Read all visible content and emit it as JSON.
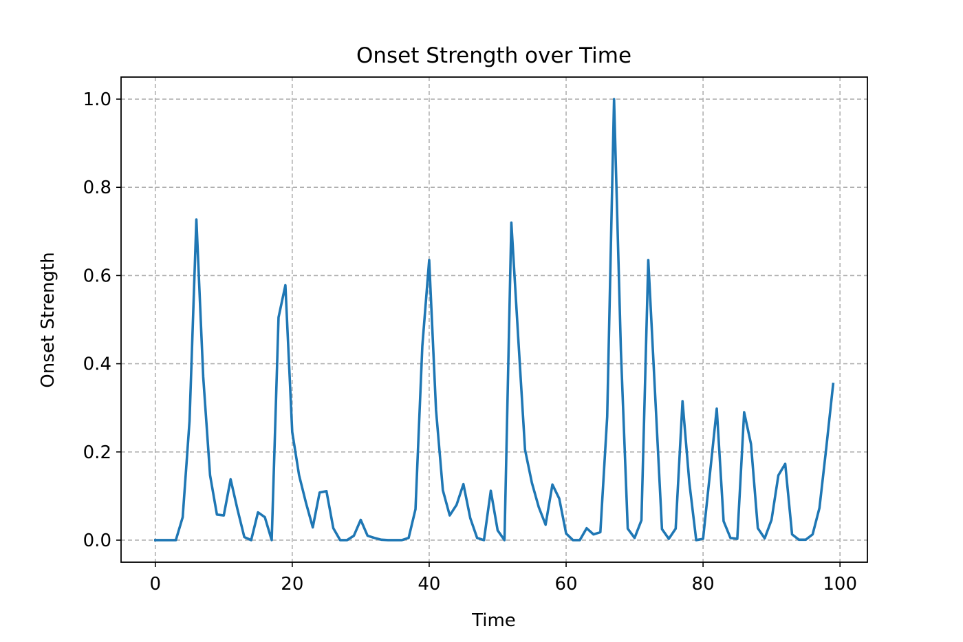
{
  "chart_data": {
    "type": "line",
    "title": "Onset Strength over Time",
    "xlabel": "Time",
    "ylabel": "Onset Strength",
    "xlim": [
      -5,
      104
    ],
    "ylim": [
      -0.05,
      1.05
    ],
    "xticks": [
      0,
      20,
      40,
      60,
      80,
      100
    ],
    "xtick_labels": [
      "0",
      "20",
      "40",
      "60",
      "80",
      "100"
    ],
    "yticks": [
      0.0,
      0.2,
      0.4,
      0.6,
      0.8,
      1.0
    ],
    "ytick_labels": [
      "0.0",
      "0.2",
      "0.4",
      "0.6",
      "0.8",
      "1.0"
    ],
    "grid": true,
    "series": [
      {
        "color": "#1f77b4",
        "x": [
          0,
          1,
          2,
          3,
          4,
          5,
          6,
          7,
          8,
          9,
          10,
          11,
          12,
          13,
          14,
          15,
          16,
          17,
          18,
          19,
          20,
          21,
          22,
          23,
          24,
          25,
          26,
          27,
          28,
          29,
          30,
          31,
          32,
          33,
          34,
          35,
          36,
          37,
          38,
          39,
          40,
          41,
          42,
          43,
          44,
          45,
          46,
          47,
          48,
          49,
          50,
          51,
          52,
          53,
          54,
          55,
          56,
          57,
          58,
          59,
          60,
          61,
          62,
          63,
          64,
          65,
          66,
          67,
          68,
          69,
          70,
          71,
          72,
          73,
          74,
          75,
          76,
          77,
          78,
          79,
          80,
          81,
          82,
          83,
          84,
          85,
          86,
          87,
          88,
          89,
          90,
          91,
          92,
          93,
          94,
          95,
          96,
          97,
          98,
          99
        ],
        "y": [
          0.0,
          0.0,
          0.0,
          0.0,
          0.052,
          0.27,
          0.727,
          0.37,
          0.147,
          0.058,
          0.056,
          0.138,
          0.07,
          0.007,
          0.0,
          0.063,
          0.052,
          0.0,
          0.505,
          0.578,
          0.245,
          0.147,
          0.085,
          0.029,
          0.108,
          0.111,
          0.027,
          0.0,
          0.0,
          0.01,
          0.046,
          0.01,
          0.005,
          0.001,
          0.0,
          0.0,
          0.0,
          0.005,
          0.07,
          0.44,
          0.635,
          0.295,
          0.113,
          0.056,
          0.08,
          0.127,
          0.05,
          0.005,
          0.0,
          0.112,
          0.022,
          0.0,
          0.72,
          0.46,
          0.205,
          0.13,
          0.075,
          0.035,
          0.126,
          0.094,
          0.015,
          0.0,
          0.0,
          0.027,
          0.013,
          0.018,
          0.28,
          1.0,
          0.43,
          0.026,
          0.005,
          0.045,
          0.635,
          0.33,
          0.025,
          0.003,
          0.026,
          0.315,
          0.13,
          0.0,
          0.003,
          0.15,
          0.298,
          0.043,
          0.005,
          0.003,
          0.29,
          0.218,
          0.027,
          0.004,
          0.046,
          0.147,
          0.173,
          0.013,
          0.001,
          0.001,
          0.013,
          0.073,
          0.21,
          0.354
        ]
      }
    ]
  }
}
